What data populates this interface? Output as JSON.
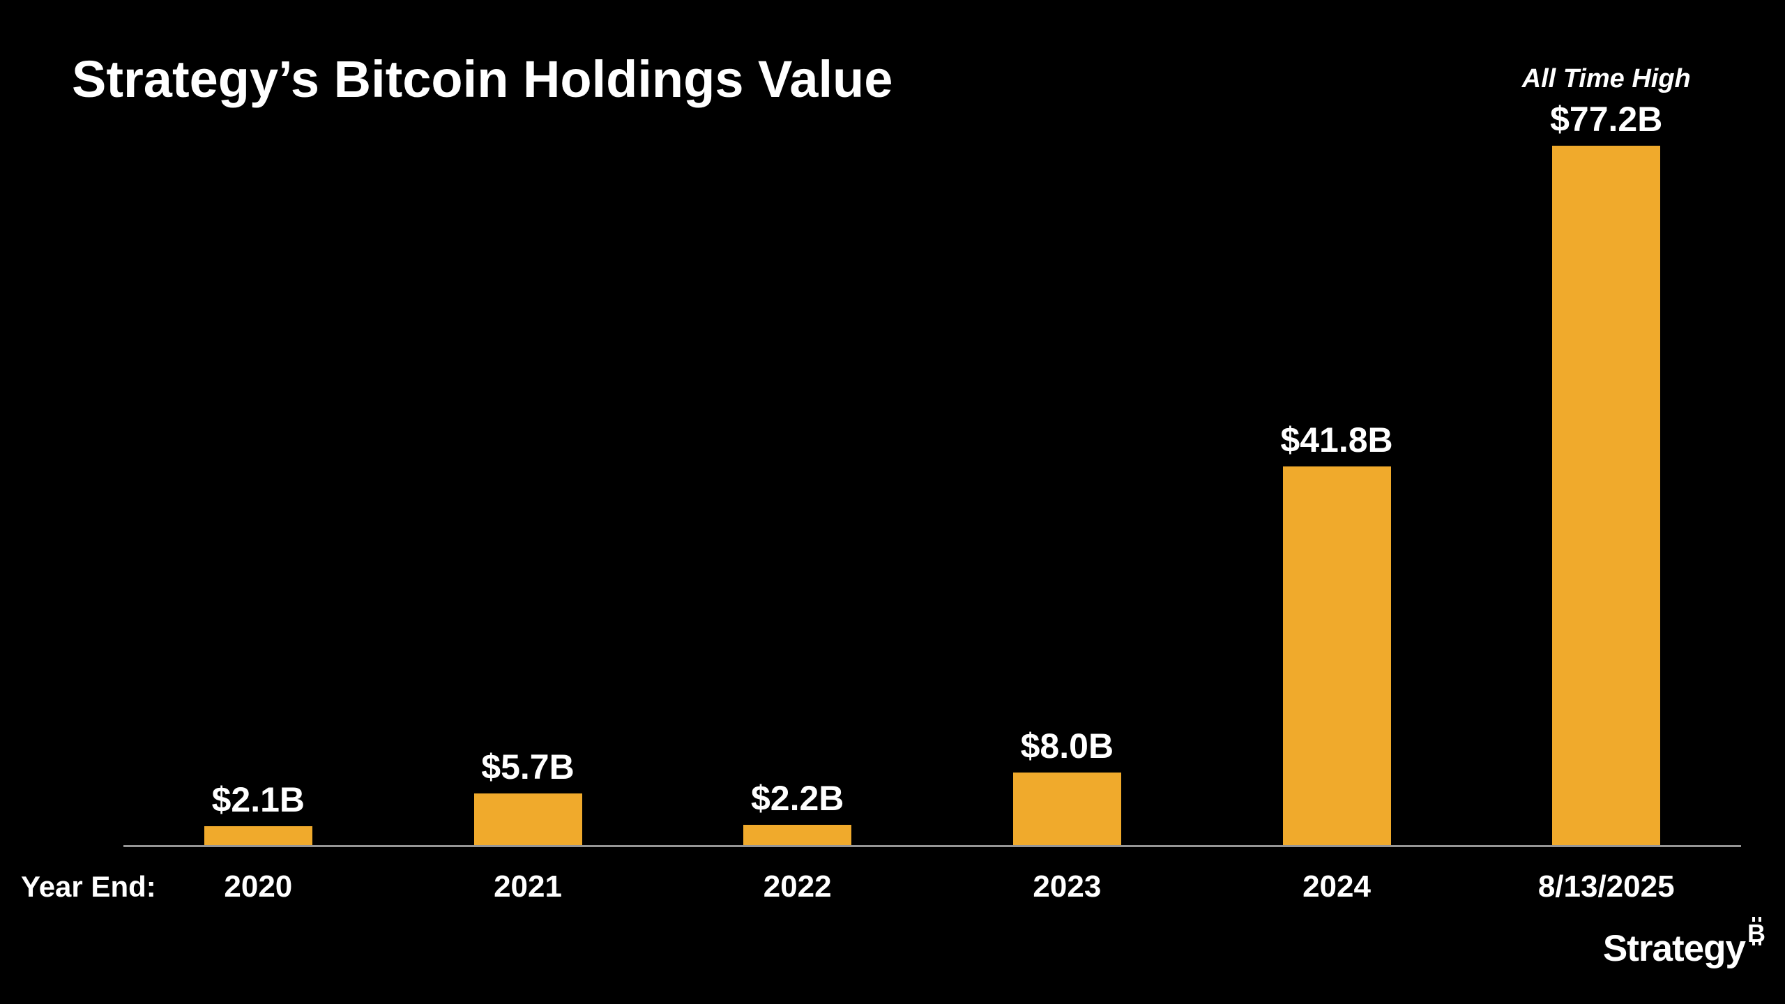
{
  "page": {
    "background_color": "#000000",
    "text_color": "#FFFFFF"
  },
  "title": "Strategy’s Bitcoin Holdings Value",
  "chart_data": {
    "type": "bar",
    "title": "Strategy’s Bitcoin Holdings Value",
    "categories": [
      "2020",
      "2021",
      "2022",
      "2023",
      "2024",
      "8/13/2025"
    ],
    "values": [
      2.1,
      5.7,
      2.2,
      8.0,
      41.8,
      77.2
    ],
    "value_labels": [
      "$2.1B",
      "$5.7B",
      "$2.2B",
      "$8.0B",
      "$41.8B",
      "$77.2B"
    ],
    "x_axis_prefix_label": "Year End:",
    "ylim": [
      0,
      77.2
    ],
    "grid": false,
    "legend": false,
    "bar_color": "#F0AA2C",
    "axis_line_color": "#969696",
    "label_color": "#FFFFFF",
    "annotations": [
      {
        "target": "8/13/2025",
        "text": "All Time High"
      }
    ]
  },
  "footer": {
    "brand": "Strategy",
    "icon": "bitcoin-icon"
  }
}
